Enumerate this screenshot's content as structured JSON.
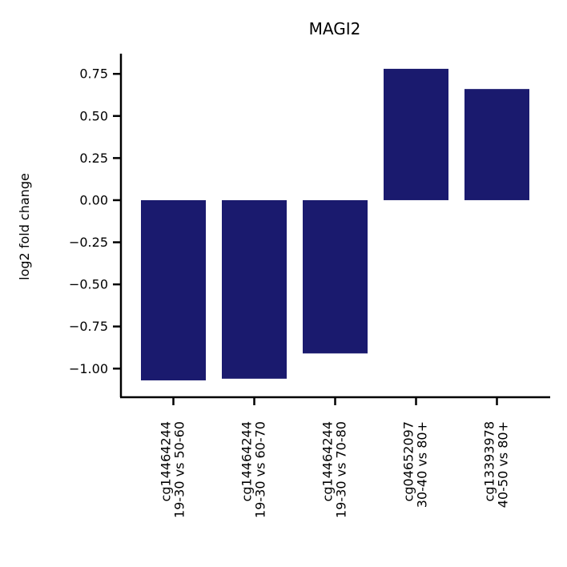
{
  "chart_data": {
    "type": "bar",
    "title": "MAGI2",
    "xlabel": "",
    "ylabel": "log2 fold change",
    "ylim": [
      -1.17,
      0.87
    ],
    "yticks": [
      -1.0,
      -0.75,
      -0.5,
      -0.25,
      0.0,
      0.25,
      0.5,
      0.75
    ],
    "ytick_labels": [
      "−1.00",
      "−0.75",
      "−0.50",
      "−0.25",
      "0.00",
      "0.25",
      "0.50",
      "0.75"
    ],
    "categories": [
      [
        "cg14464244",
        "19-30 vs 50-60"
      ],
      [
        "cg14464244",
        "19-30 vs 60-70"
      ],
      [
        "cg14464244",
        "19-30 vs 70-80"
      ],
      [
        "cg04652097",
        "30-40 vs 80+"
      ],
      [
        "cg13393978",
        "40-50 vs 80+"
      ]
    ],
    "values": [
      -1.07,
      -1.06,
      -0.91,
      0.78,
      0.66
    ],
    "bar_color": "#1a1a6e",
    "grid": false,
    "legend": "none"
  }
}
